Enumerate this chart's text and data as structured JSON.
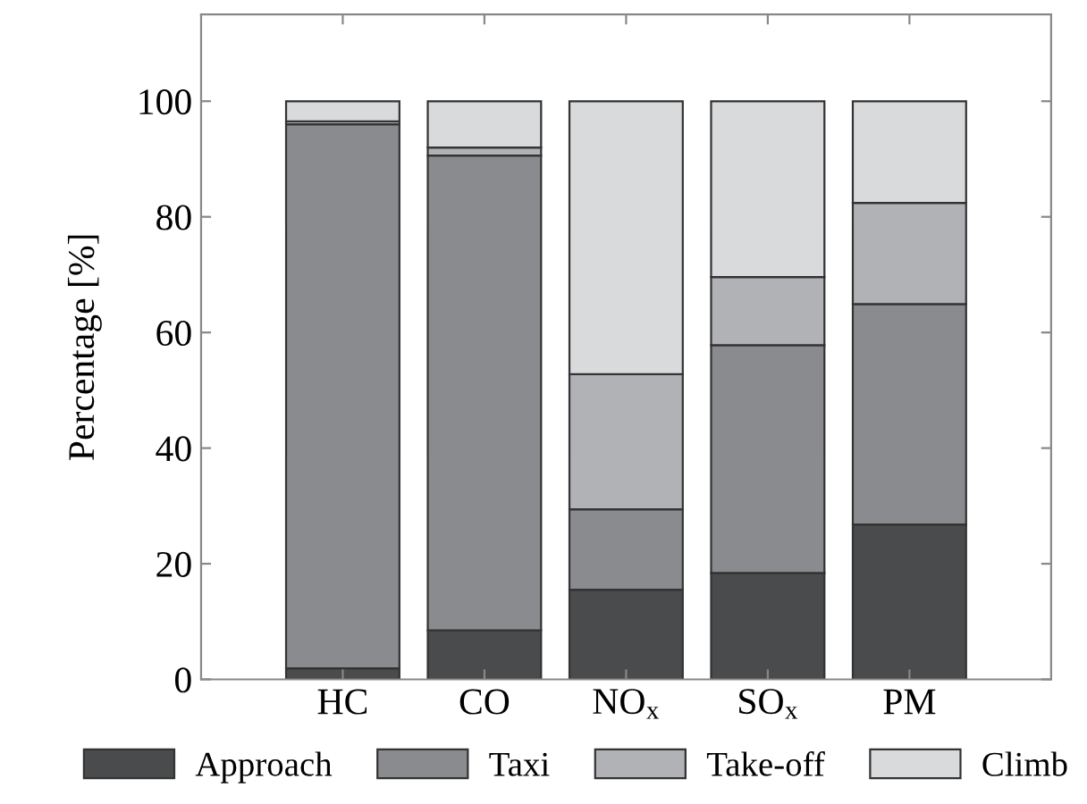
{
  "chart_data": {
    "type": "bar",
    "stacked": true,
    "ylabel": "Percentage [%]",
    "categories": [
      "HC",
      "CO",
      "NO$_{x}$",
      "SO$_{x}$",
      "PM"
    ],
    "series": [
      {
        "name": "Approach",
        "color": "#4a4b4d",
        "values": [
          1.9,
          8.5,
          15.5,
          18.4,
          26.8
        ]
      },
      {
        "name": "Taxi",
        "color": "#8a8b8e",
        "values": [
          94.1,
          82.1,
          13.9,
          39.4,
          38.1
        ]
      },
      {
        "name": "Take-off",
        "color": "#b1b2b5",
        "values": [
          0.5,
          1.4,
          23.4,
          11.8,
          17.5
        ]
      },
      {
        "name": "Climb",
        "color": "#d9dadc",
        "values": [
          3.5,
          8.0,
          47.2,
          30.4,
          17.6
        ]
      }
    ],
    "ylim": [
      0,
      115
    ],
    "yticks": [
      0,
      20,
      40,
      60,
      80,
      100
    ],
    "grid": false,
    "legend": "bottom"
  }
}
